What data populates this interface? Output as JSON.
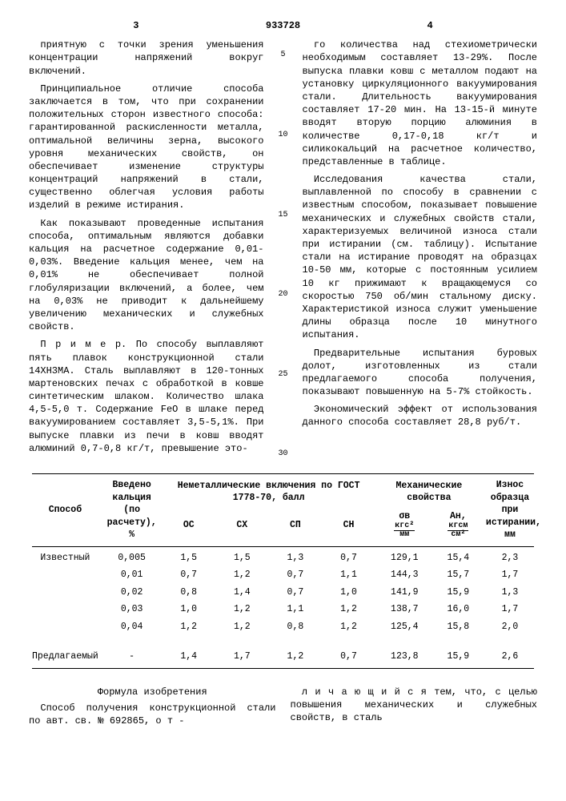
{
  "doc_number": "933728",
  "left_page_num": "3",
  "right_page_num": "4",
  "margin_markers": [
    "5",
    "10",
    "15",
    "20",
    "25",
    "30"
  ],
  "left_col_paragraphs": [
    "приятную с точки зрения уменьшения концентрации напряжений вокруг включений.",
    "Принципиальное отличие способа заключается в том, что при сохранении положительных сторон известного способа: гарантированной раскисленности металла, оптимальной величины зерна, высокого уровня механических свойств, он обеспечивает изменение структуры концентраций напряжений в стали, существенно облегчая условия работы изделий в режиме истирания.",
    "Как показывают проведенные испытания способа, оптимальным являются добавки кальция на расчетное содержание 0,01-0,03%. Введение кальция менее, чем на 0,01% не обеспечивает полной глобуляризации включений, а более, чем на 0,03% не приводит к дальнейшему увеличению механических и служебных свойств.",
    "П р и м е р. По способу выплавляют пять плавок конструкционной стали 14ХН3МА. Сталь выплавляют в 120-тонных мартеновских печах с обработкой в ковше синтетическим шлаком. Количество шлака 4,5-5,0 т. Содержание FeO в шлаке перед вакуумированием составляет 3,5-5,1%. При выпуске плавки из печи в ковш вводят алюминий 0,7-0,8 кг/т, превышение это-"
  ],
  "right_col_paragraphs": [
    "го количества над стехиометрически необходимым составляет 13-29%. После выпуска плавки ковш с металлом подают на установку циркуляционного вакуумирования стали. Длительность вакуумирования составляет 17-20 мин. На 13-15-й минуте вводят вторую порцию алюминия в количестве 0,17-0,18 кг/т и силикокальций на расчетное количество, представленные в таблице.",
    "Исследования качества стали, выплавленной по способу в сравнении с известным способом, показывает повышение механических и служебных свойств стали, характеризуемых величиной износа стали при истирании (см. таблицу). Испытание стали на истирание проводят на образцах 10-50 мм, которые с постоянным усилием 10 кг прижимают к вращающемуся со скоростью 750 об/мин стальному диску. Характеристикой износа служит уменьшение длины образца после 10 минутного испытания.",
    "Предварительные испытания буровых долот, изготовленных из стали предлагаемого способа получения, показывают повышенную на 5-7% стойкость.",
    "Экономический эффект от использования данного способа составляет 28,8 руб/т."
  ],
  "table": {
    "header": {
      "col_method": "Способ",
      "col_ca": "Введено кальция (по расчету), %",
      "col_inclusions": "Неметаллические включения по ГОСТ 1778-70, балл",
      "inclusion_sub": [
        "ОС",
        "СХ",
        "СП",
        "СН"
      ],
      "col_mech": "Механические свойства",
      "mech_sigma_top": "σв",
      "mech_sigma_unit_top": "кгс²",
      "mech_sigma_unit_bot": "мм",
      "mech_an": "Ан,",
      "mech_an_unit_top": "кгсм",
      "mech_an_unit_bot": "см²",
      "col_wear": "Износ образца при истирании, мм"
    },
    "rows": [
      {
        "method": "Известный",
        "ca": "0,005",
        "os": "1,5",
        "sx": "1,5",
        "sp": "1,3",
        "sn": "0,7",
        "sigma": "129,1",
        "an": "15,4",
        "wear": "2,3"
      },
      {
        "method": "",
        "ca": "0,01",
        "os": "0,7",
        "sx": "1,2",
        "sp": "0,7",
        "sn": "1,1",
        "sigma": "144,3",
        "an": "15,7",
        "wear": "1,7"
      },
      {
        "method": "",
        "ca": "0,02",
        "os": "0,8",
        "sx": "1,4",
        "sp": "0,7",
        "sn": "1,0",
        "sigma": "141,9",
        "an": "15,9",
        "wear": "1,3"
      },
      {
        "method": "",
        "ca": "0,03",
        "os": "1,0",
        "sx": "1,2",
        "sp": "1,1",
        "sn": "1,2",
        "sigma": "138,7",
        "an": "16,0",
        "wear": "1,7"
      },
      {
        "method": "",
        "ca": "0,04",
        "os": "1,2",
        "sx": "1,2",
        "sp": "0,8",
        "sn": "1,2",
        "sigma": "125,4",
        "an": "15,8",
        "wear": "2,0"
      },
      {
        "method": "Предлагаемый",
        "ca": "-",
        "os": "1,4",
        "sx": "1,7",
        "sp": "1,2",
        "sn": "0,7",
        "sigma": "123,8",
        "an": "15,9",
        "wear": "2,6"
      }
    ]
  },
  "formula_title": "Формула изобретения",
  "formula_left": "Способ получения конструкционной стали по авт. св. № 692865, о т -",
  "formula_right": "л и ч а ю щ и й с я   тем, что, с целью повышения механических и служебных свойств, в сталь"
}
